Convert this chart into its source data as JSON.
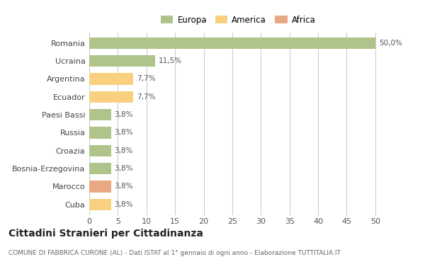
{
  "categories": [
    "Romania",
    "Ucraina",
    "Argentina",
    "Ecuador",
    "Paesi Bassi",
    "Russia",
    "Croazia",
    "Bosnia-Erzegovina",
    "Marocco",
    "Cuba"
  ],
  "values": [
    50.0,
    11.5,
    7.7,
    7.7,
    3.8,
    3.8,
    3.8,
    3.8,
    3.8,
    3.8
  ],
  "labels": [
    "50,0%",
    "11,5%",
    "7,7%",
    "7,7%",
    "3,8%",
    "3,8%",
    "3,8%",
    "3,8%",
    "3,8%",
    "3,8%"
  ],
  "colors": [
    "#aec48a",
    "#aec48a",
    "#f8d080",
    "#f8d080",
    "#aec48a",
    "#aec48a",
    "#aec48a",
    "#aec48a",
    "#e8a882",
    "#f8d080"
  ],
  "legend": [
    {
      "label": "Europa",
      "color": "#aec48a"
    },
    {
      "label": "America",
      "color": "#f8d080"
    },
    {
      "label": "Africa",
      "color": "#e8a882"
    }
  ],
  "xlim": [
    0,
    52
  ],
  "xticks": [
    0,
    5,
    10,
    15,
    20,
    25,
    30,
    35,
    40,
    45,
    50
  ],
  "title": "Cittadini Stranieri per Cittadinanza",
  "subtitle": "COMUNE DI FABBRICA CURONE (AL) - Dati ISTAT al 1° gennaio di ogni anno - Elaborazione TUTTITALIA.IT",
  "bg_color": "#ffffff",
  "grid_color": "#cccccc",
  "bar_height": 0.65
}
